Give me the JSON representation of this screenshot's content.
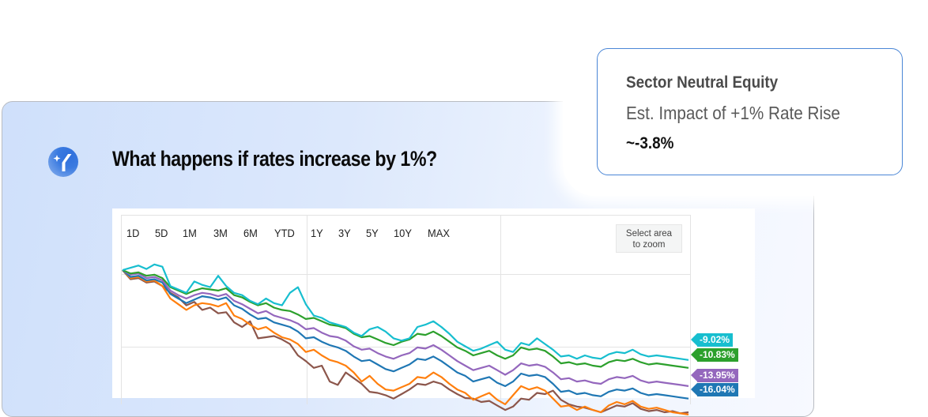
{
  "question": {
    "icon": "ai-sparkle-y-icon",
    "text": "What happens if rates increase by 1%?"
  },
  "chart_toolbar": {
    "ranges": [
      "1D",
      "5D",
      "1M",
      "3M",
      "6M",
      "YTD",
      "1Y",
      "3Y",
      "5Y",
      "10Y",
      "MAX"
    ],
    "zoom_button_line1": "Select area",
    "zoom_button_line2": "to zoom"
  },
  "popup": {
    "title": "Sector Neutral Equity",
    "subtitle": "Est. Impact of +1% Rate Rise",
    "value": "~-3.8%"
  },
  "chart_data": {
    "type": "line",
    "title": "",
    "xlabel": "",
    "ylabel": "",
    "legend_position": "right end labels",
    "grid": true,
    "series": [
      {
        "name": "cyan",
        "color": "#17becf",
        "end_label": "-9.02%",
        "points": [
          [
            0,
            0
          ],
          [
            10,
            -3
          ],
          [
            20,
            3
          ],
          [
            30,
            1
          ],
          [
            40,
            -4
          ],
          [
            50,
            -28
          ],
          [
            60,
            -32
          ],
          [
            70,
            -15
          ],
          [
            80,
            -27
          ],
          [
            90,
            -18
          ],
          [
            100,
            -27
          ],
          [
            110,
            -35
          ],
          [
            120,
            -40
          ],
          [
            135,
            -55
          ],
          [
            145,
            -40
          ],
          [
            160,
            -48
          ],
          [
            170,
            -60
          ],
          [
            180,
            -75
          ],
          [
            185,
            -50
          ],
          [
            195,
            -85
          ],
          [
            205,
            -80
          ],
          [
            215,
            -83
          ],
          [
            230,
            -55
          ],
          [
            245,
            -57
          ],
          [
            255,
            -90
          ],
          [
            270,
            -105
          ],
          [
            285,
            -110
          ],
          [
            300,
            -112
          ],
          [
            320,
            -128
          ],
          [
            340,
            -140
          ],
          [
            355,
            -110
          ],
          [
            370,
            -105
          ],
          [
            390,
            -112
          ],
          [
            410,
            -128
          ],
          [
            420,
            -118
          ],
          [
            440,
            -120
          ],
          [
            450,
            -60
          ],
          [
            460,
            -70
          ],
          [
            470,
            -120
          ],
          [
            480,
            -128
          ],
          [
            500,
            -135
          ],
          [
            520,
            -165
          ],
          [
            535,
            -155
          ],
          [
            555,
            -150
          ],
          [
            565,
            -155
          ],
          [
            575,
            -165
          ],
          [
            590,
            -135
          ],
          [
            600,
            -140
          ],
          [
            615,
            -140
          ],
          [
            620,
            -90
          ],
          [
            640,
            -100
          ],
          [
            650,
            -65
          ],
          [
            665,
            -72
          ],
          [
            670,
            -70
          ],
          [
            680,
            -75
          ],
          [
            700,
            -80
          ],
          [
            710,
            -72
          ],
          [
            720,
            -78
          ]
        ]
      },
      {
        "name": "green",
        "color": "#2ca02c",
        "end_label": "-10.83%",
        "points": [
          [
            0,
            0
          ],
          [
            10,
            -10
          ],
          [
            20,
            -5
          ],
          [
            30,
            -12
          ],
          [
            40,
            -15
          ],
          [
            50,
            -30
          ],
          [
            60,
            -38
          ],
          [
            70,
            -28
          ],
          [
            80,
            -32
          ],
          [
            90,
            -30
          ],
          [
            100,
            -38
          ],
          [
            110,
            -42
          ],
          [
            120,
            -45
          ],
          [
            135,
            -52
          ],
          [
            145,
            -45
          ],
          [
            160,
            -60
          ],
          [
            175,
            -72
          ],
          [
            185,
            -62
          ],
          [
            195,
            -55
          ],
          [
            215,
            -55
          ],
          [
            230,
            -50
          ],
          [
            240,
            -60
          ],
          [
            255,
            -75
          ],
          [
            270,
            -85
          ],
          [
            285,
            -90
          ],
          [
            300,
            -95
          ],
          [
            320,
            -105
          ],
          [
            340,
            -110
          ],
          [
            355,
            -95
          ],
          [
            370,
            -95
          ],
          [
            390,
            -105
          ],
          [
            410,
            -115
          ],
          [
            420,
            -110
          ],
          [
            440,
            -112
          ],
          [
            450,
            -80
          ],
          [
            460,
            -90
          ],
          [
            470,
            -115
          ],
          [
            480,
            -120
          ],
          [
            500,
            -125
          ],
          [
            520,
            -145
          ],
          [
            540,
            -140
          ],
          [
            560,
            -148
          ],
          [
            575,
            -145
          ],
          [
            590,
            -130
          ],
          [
            600,
            -135
          ],
          [
            615,
            -135
          ],
          [
            620,
            -92
          ],
          [
            640,
            -95
          ],
          [
            650,
            -80
          ],
          [
            665,
            -85
          ],
          [
            680,
            -88
          ],
          [
            700,
            -92
          ],
          [
            720,
            -96
          ]
        ]
      }
    ],
    "note": "Six normalized return series (cyan, green, purple, blue, orange, brown) declining over time; visible end labels: -9.02%, -10.83%, -13.95%, -16.04%; orange and brown labels cropped",
    "end_labels": [
      {
        "series": "cyan",
        "color": "#17becf",
        "label": "-9.02%"
      },
      {
        "series": "green",
        "color": "#2ca02c",
        "label": "-10.83%"
      },
      {
        "series": "purple",
        "color": "#9467bd",
        "label": "-13.95%"
      },
      {
        "series": "blue",
        "color": "#1f77b4",
        "label": "-16.04%"
      }
    ],
    "render_series": [
      {
        "name": "brown",
        "color": "#8c564b",
        "y": [
          0,
          16,
          14,
          22,
          20,
          28,
          40,
          48,
          62,
          56,
          70,
          66,
          76,
          74,
          92,
          100,
          90,
          120,
          118,
          116,
          122,
          130,
          150,
          160,
          172,
          168,
          196,
          202,
          180,
          190,
          200,
          214,
          216,
          220,
          226,
          218,
          210,
          200,
          202,
          196,
          200,
          210,
          218,
          225,
          226,
          232,
          230,
          238,
          246,
          240,
          226,
          228,
          216,
          218,
          212,
          228,
          236,
          240,
          242,
          246,
          250,
          244,
          238,
          240,
          234,
          244,
          248,
          246,
          250,
          248,
          252,
          250
        ]
      },
      {
        "name": "orange",
        "color": "#ff7f0e",
        "y": [
          0,
          14,
          12,
          20,
          18,
          28,
          50,
          60,
          70,
          62,
          58,
          60,
          64,
          58,
          80,
          86,
          96,
          104,
          100,
          110,
          118,
          122,
          130,
          144,
          140,
          150,
          158,
          162,
          168,
          180,
          196,
          186,
          200,
          210,
          212,
          206,
          200,
          188,
          190,
          180,
          188,
          200,
          210,
          216,
          228,
          222,
          216,
          228,
          236,
          220,
          204,
          210,
          206,
          212,
          226,
          240,
          238,
          246,
          240,
          246,
          250,
          238,
          232,
          236,
          230,
          240,
          244,
          242,
          246,
          250,
          252,
          254
        ]
      },
      {
        "name": "blue",
        "color": "#1f77b4",
        "y": [
          0,
          12,
          10,
          18,
          16,
          22,
          42,
          50,
          58,
          52,
          46,
          48,
          52,
          48,
          62,
          68,
          78,
          86,
          84,
          92,
          96,
          100,
          108,
          120,
          118,
          126,
          132,
          136,
          142,
          152,
          160,
          158,
          166,
          174,
          178,
          172,
          166,
          156,
          158,
          152,
          160,
          170,
          180,
          186,
          196,
          192,
          188,
          198,
          204,
          196,
          182,
          186,
          184,
          188,
          200,
          214,
          212,
          218,
          216,
          220,
          222,
          214,
          210,
          212,
          208,
          216,
          220,
          218,
          220,
          222,
          224,
          226
        ]
      },
      {
        "name": "purple",
        "color": "#9467bd",
        "y": [
          0,
          8,
          6,
          14,
          12,
          18,
          36,
          44,
          50,
          44,
          40,
          42,
          46,
          42,
          54,
          60,
          68,
          76,
          72,
          80,
          84,
          88,
          94,
          104,
          102,
          110,
          116,
          118,
          124,
          134,
          140,
          138,
          146,
          152,
          156,
          150,
          146,
          136,
          138,
          132,
          140,
          150,
          160,
          168,
          176,
          172,
          168,
          176,
          184,
          176,
          164,
          168,
          166,
          170,
          180,
          192,
          190,
          196,
          194,
          198,
          200,
          192,
          188,
          190,
          186,
          194,
          198,
          196,
          198,
          200,
          202,
          204
        ]
      },
      {
        "name": "green",
        "color": "#2ca02c",
        "y": [
          0,
          6,
          4,
          10,
          8,
          14,
          30,
          36,
          42,
          36,
          32,
          34,
          36,
          32,
          44,
          48,
          56,
          62,
          58,
          66,
          70,
          72,
          78,
          86,
          84,
          90,
          96,
          98,
          102,
          112,
          118,
          116,
          122,
          128,
          132,
          126,
          122,
          112,
          114,
          108,
          116,
          126,
          136,
          142,
          150,
          146,
          142,
          150,
          156,
          150,
          136,
          140,
          138,
          142,
          152,
          164,
          162,
          166,
          164,
          168,
          170,
          162,
          158,
          160,
          156,
          162,
          166,
          164,
          166,
          168,
          170,
          172
        ]
      },
      {
        "name": "cyan",
        "color": "#17becf",
        "y": [
          0,
          -4,
          -8,
          -2,
          -10,
          -6,
          28,
          34,
          40,
          20,
          26,
          30,
          10,
          28,
          40,
          44,
          54,
          60,
          50,
          58,
          62,
          40,
          30,
          60,
          80,
          84,
          92,
          96,
          100,
          110,
          116,
          104,
          100,
          108,
          120,
          124,
          120,
          100,
          96,
          90,
          100,
          112,
          126,
          134,
          142,
          138,
          132,
          126,
          140,
          144,
          128,
          132,
          120,
          130,
          140,
          152,
          150,
          156,
          150,
          154,
          156,
          148,
          144,
          146,
          140,
          148,
          152,
          150,
          152,
          154,
          156,
          158
        ]
      }
    ]
  }
}
